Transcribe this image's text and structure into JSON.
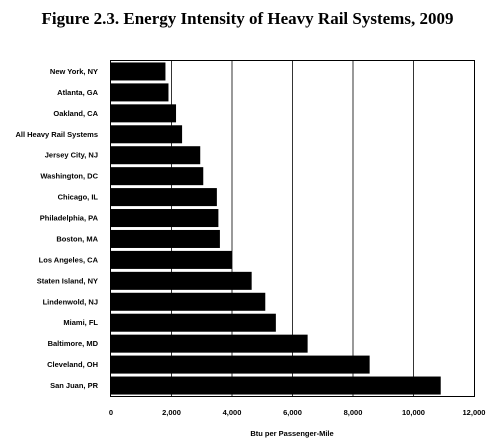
{
  "chart_data": {
    "type": "bar",
    "orientation": "horizontal",
    "title": "Figure 2.3. Energy Intensity of Heavy Rail Systems, 2009",
    "xlabel": "Btu per Passenger-Mile",
    "ylabel": "",
    "xlim": [
      0,
      12000
    ],
    "xticks": [
      0,
      2000,
      4000,
      6000,
      8000,
      10000,
      12000
    ],
    "xtick_labels": [
      "0",
      "2,000",
      "4,000",
      "6,000",
      "8,000",
      "10,000",
      "12,000"
    ],
    "grid": "vertical",
    "legend": "none",
    "bar_color": "#000000",
    "categories": [
      "New York, NY",
      "Atlanta, GA",
      "Oakland, CA",
      "All Heavy Rail Systems",
      "Jersey City, NJ",
      "Washington, DC",
      "Chicago, IL",
      "Philadelphia, PA",
      "Boston, MA",
      "Los Angeles, CA",
      "Staten Island, NY",
      "Lindenwold, NJ",
      "Miami, FL",
      "Baltimore, MD",
      "Cleveland, OH",
      "San Juan, PR"
    ],
    "values": [
      1800,
      1900,
      2150,
      2350,
      2950,
      3050,
      3500,
      3550,
      3600,
      4000,
      4650,
      5100,
      5450,
      6500,
      8550,
      10900
    ]
  }
}
